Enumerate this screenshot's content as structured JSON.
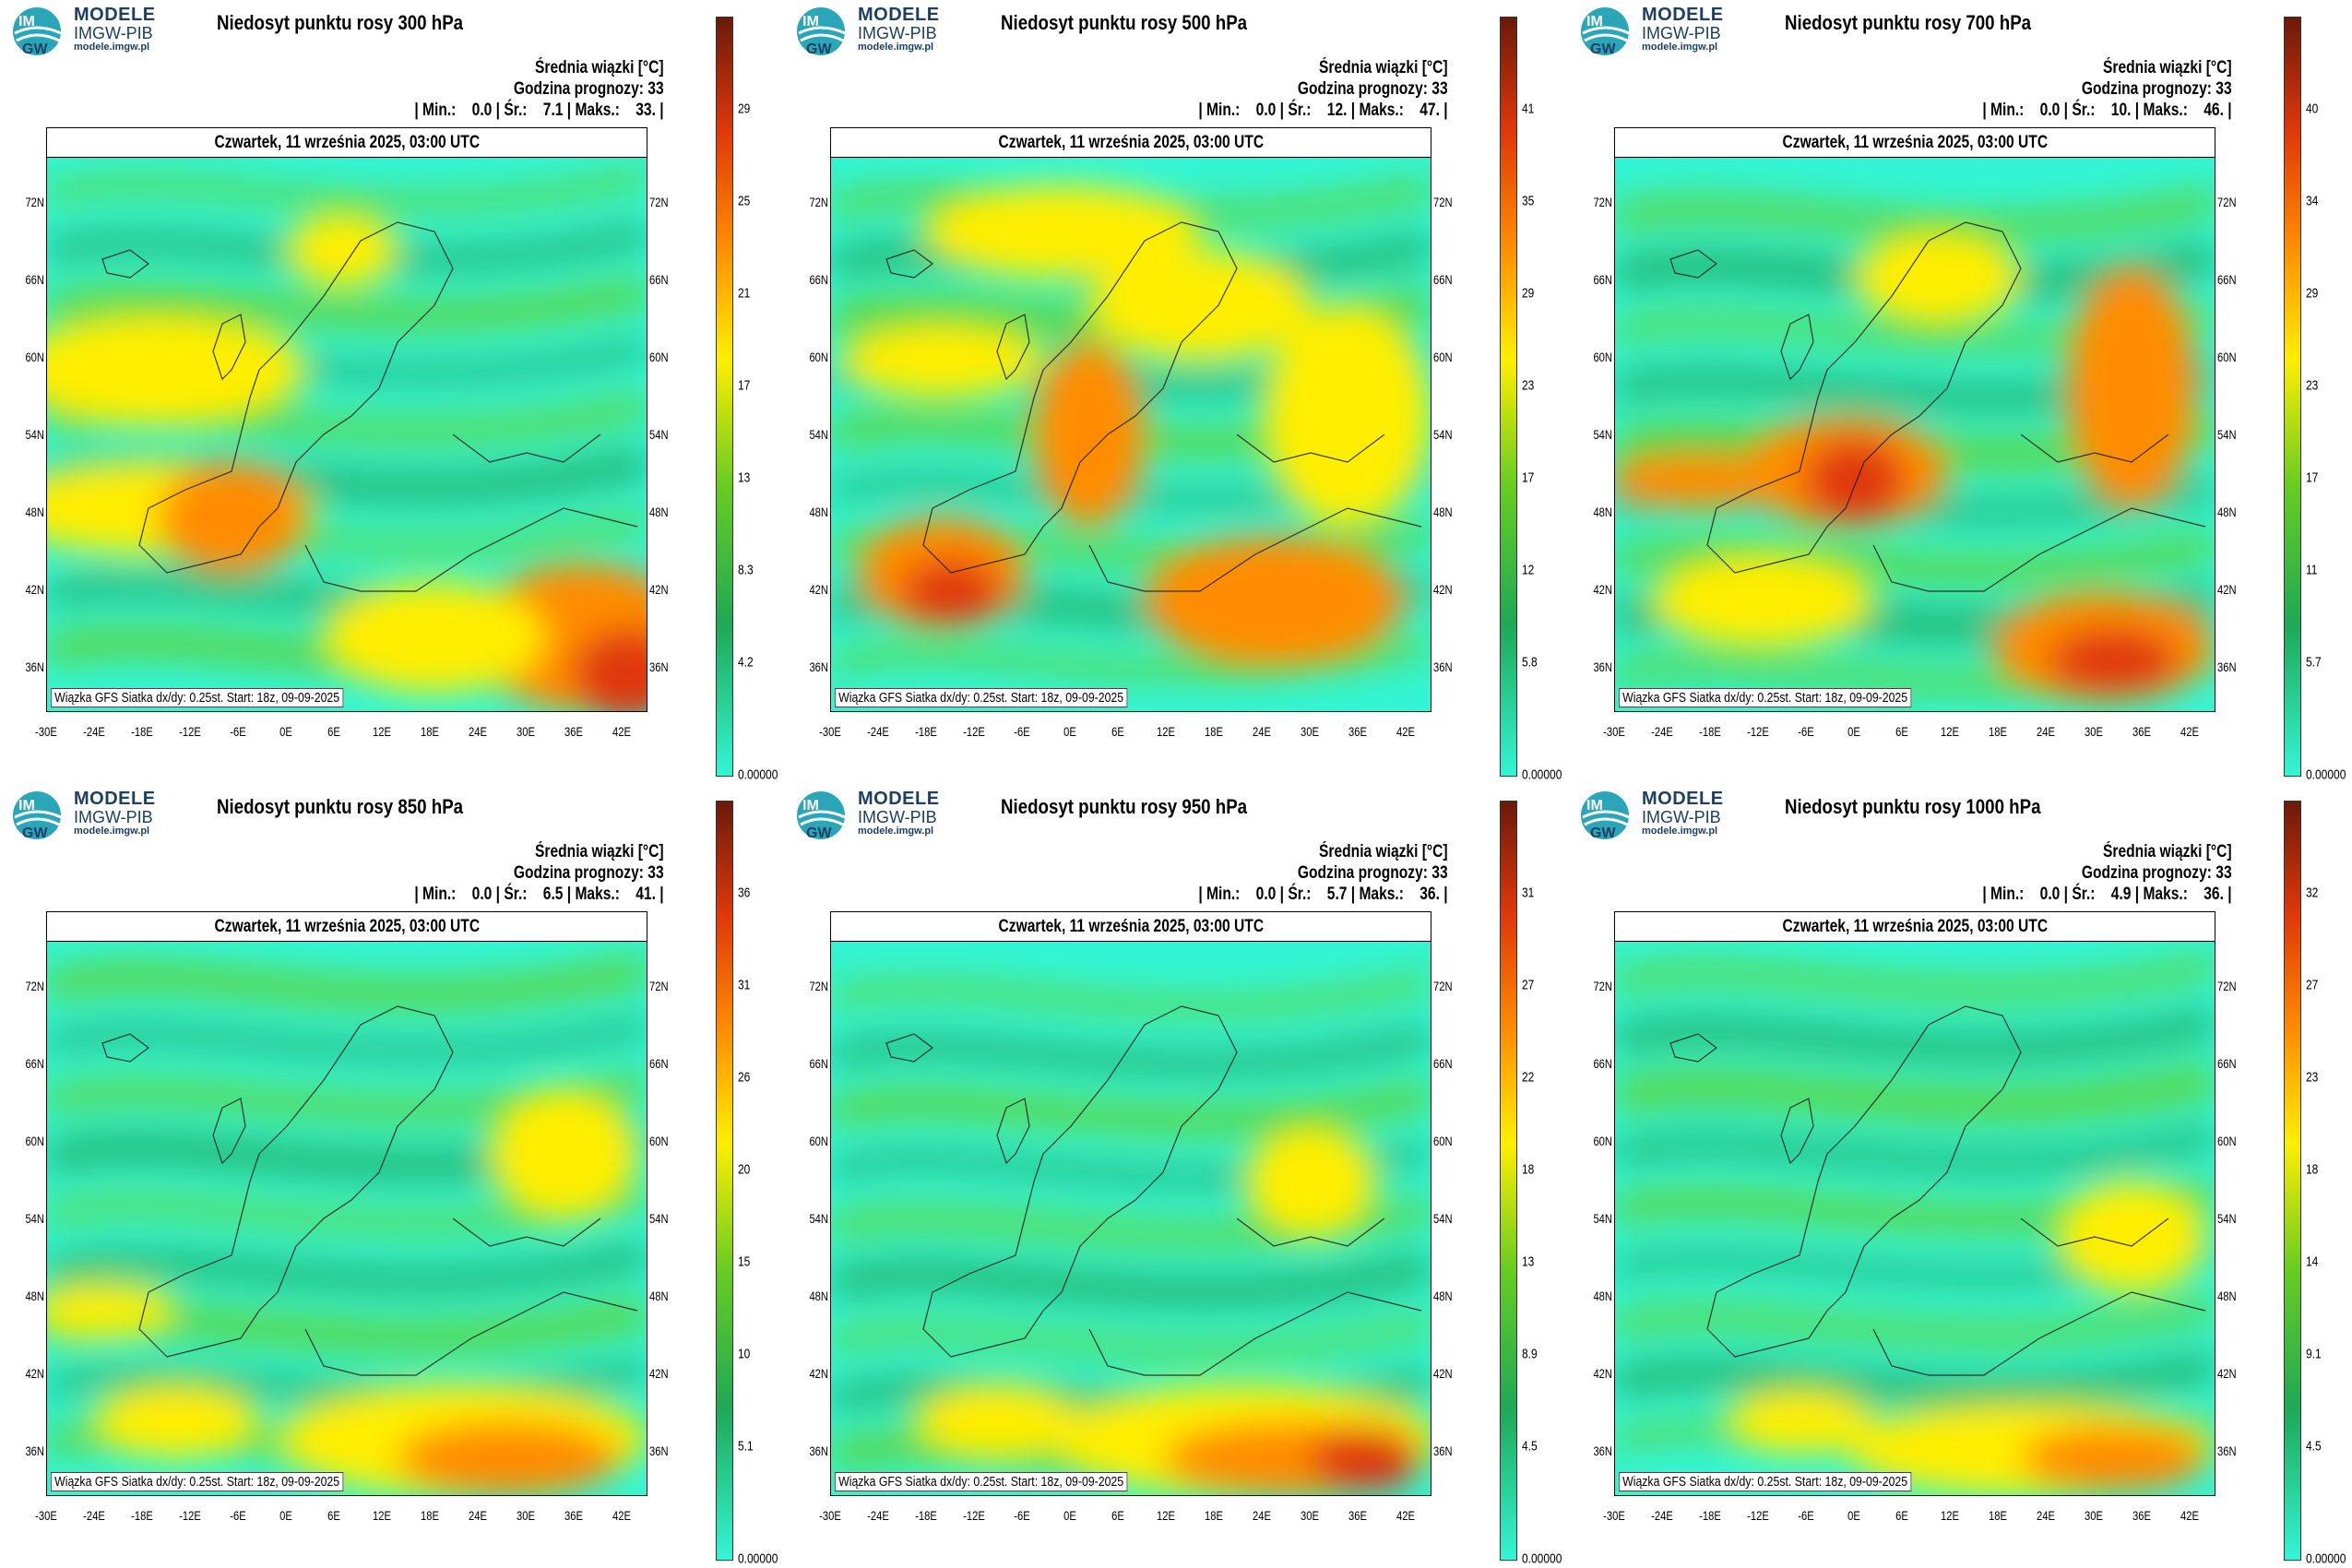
{
  "brand": {
    "line1": "MODELE",
    "line2": "IMGW-PIB",
    "line3": "modele.imgw.pl"
  },
  "common": {
    "units_label": "Średnia wiązki [°C]",
    "forecast_hour_label": "Godzina prognozy: 33",
    "date_label": "Czwartek, 11 września 2025, 03:00 UTC",
    "footer": "Wiązka GFS Siatka dx/dy: 0.25st. Start: 18z, 09-09-2025",
    "lat_labels": [
      "72N",
      "66N",
      "60N",
      "54N",
      "48N",
      "42N",
      "36N"
    ],
    "lon_labels": [
      "-30E",
      "-24E",
      "-18E",
      "-12E",
      "-6E",
      "0E",
      "6E",
      "12E",
      "18E",
      "24E",
      "30E",
      "36E",
      "42E"
    ]
  },
  "colors": {
    "low": "#33f5d5",
    "mid": "#1fa855",
    "green": "#66cc22",
    "yellow": "#ffee00",
    "orange": "#ff8c00",
    "red": "#e0380a",
    "dark": "#6b1a0a"
  },
  "panels": [
    {
      "title": "Niedosyt punktu rosy 300 hPa",
      "stats": "| Min.:    0.0 | Śr.:    7.1 | Maks.:    33. |",
      "colorbar": [
        "29",
        "25",
        "21",
        "17",
        "13",
        "8.3",
        "4.2",
        "0.00000"
      ]
    },
    {
      "title": "Niedosyt punktu rosy 500 hPa",
      "stats": "| Min.:    0.0 | Śr.:    12. | Maks.:    47. |",
      "colorbar": [
        "41",
        "35",
        "29",
        "23",
        "17",
        "12",
        "5.8",
        "0.00000"
      ]
    },
    {
      "title": "Niedosyt punktu rosy 700 hPa",
      "stats": "| Min.:    0.0 | Śr.:    10. | Maks.:    46. |",
      "colorbar": [
        "40",
        "34",
        "29",
        "23",
        "17",
        "11",
        "5.7",
        "0.00000"
      ]
    },
    {
      "title": "Niedosyt punktu rosy 850 hPa",
      "stats": "| Min.:    0.0 | Śr.:    6.5 | Maks.:    41. |",
      "colorbar": [
        "36",
        "31",
        "26",
        "20",
        "15",
        "10",
        "5.1",
        "0.00000"
      ]
    },
    {
      "title": "Niedosyt punktu rosy 950 hPa",
      "stats": "| Min.:    0.0 | Śr.:    5.7 | Maks.:    36. |",
      "colorbar": [
        "31",
        "27",
        "22",
        "18",
        "13",
        "8.9",
        "4.5",
        "0.00000"
      ]
    },
    {
      "title": "Niedosyt punktu rosy 1000 hPa",
      "stats": "| Min.:    0.0 | Śr.:    4.9 | Maks.:    36. |",
      "colorbar": [
        "32",
        "27",
        "23",
        "18",
        "14",
        "9.1",
        "4.5",
        "0.00000"
      ]
    }
  ]
}
